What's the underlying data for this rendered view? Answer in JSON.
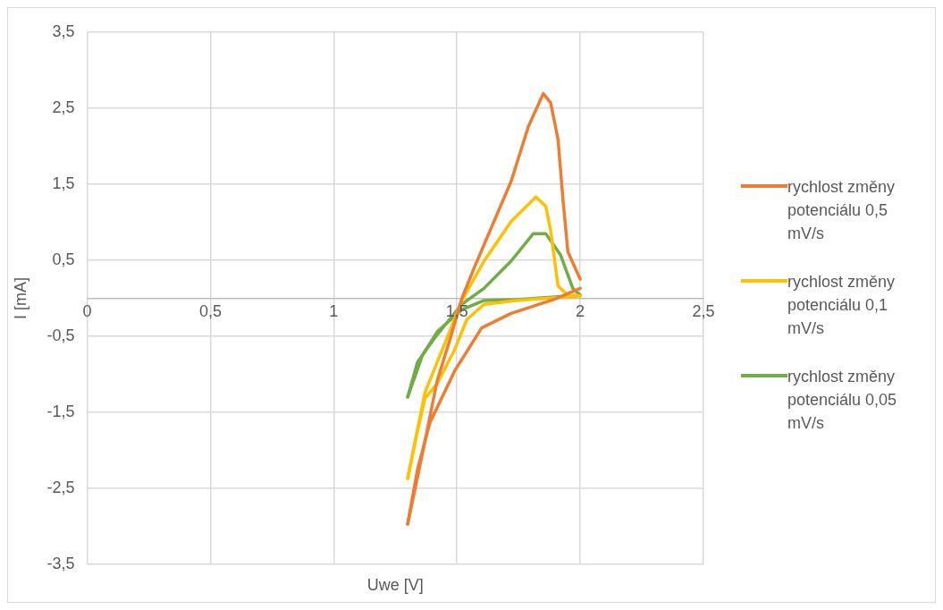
{
  "chart_data": {
    "type": "line",
    "xlabel": "Uwe [V]",
    "ylabel": "I [mA]",
    "xlim": [
      0,
      2.5
    ],
    "ylim": [
      -3.5,
      3.5
    ],
    "xticks": [
      0,
      {
        "value": 0.5,
        "label": "0,5"
      },
      1,
      {
        "value": 1.5,
        "label": "1,5"
      },
      2,
      {
        "value": 2.5,
        "label": "2,5"
      }
    ],
    "yticks": [
      {
        "value": -3.5,
        "label": "-3,5"
      },
      {
        "value": -2.5,
        "label": "-2,5"
      },
      {
        "value": -1.5,
        "label": "-1,5"
      },
      {
        "value": -0.5,
        "label": "-0,5"
      },
      {
        "value": 0.5,
        "label": "0,5"
      },
      {
        "value": 1.5,
        "label": "1,5"
      },
      {
        "value": 2.5,
        "label": "2,5"
      },
      {
        "value": 3.5,
        "label": "3,5"
      }
    ],
    "grid": true,
    "legend": "right",
    "marker": "none",
    "line_style": "solid",
    "series": [
      {
        "name": "rychlost změny potenciálu 0,5 mV/s",
        "color": "#ed7d31",
        "x": [
          1.3,
          1.36,
          1.42,
          1.47,
          1.52,
          1.57,
          1.72,
          1.79,
          1.85,
          1.88,
          1.91,
          1.93,
          1.95,
          2.0
        ],
        "values": [
          -2.97,
          -2.04,
          -1.08,
          -0.56,
          0,
          0.4,
          1.54,
          2.26,
          2.69,
          2.57,
          2.09,
          1.3,
          0.61,
          0.25
        ]
      },
      {
        "color": "#ed7d31",
        "x": [
          1.3,
          1.34,
          1.39,
          1.49,
          1.6,
          1.72,
          1.89,
          2.0
        ],
        "values": [
          -2.97,
          -2.25,
          -1.64,
          -0.96,
          -0.39,
          -0.2,
          -0.02,
          0.13
        ]
      },
      {
        "name": "rychlost změny potenciálu 0,1 mV/s",
        "color": "#ffc000",
        "x": [
          1.3,
          1.33,
          1.37,
          1.46,
          1.52,
          1.61,
          1.72,
          1.82,
          1.86,
          1.88,
          1.91,
          1.95,
          2.0
        ],
        "values": [
          -2.37,
          -1.89,
          -1.24,
          -0.52,
          -0.03,
          0.49,
          1.01,
          1.33,
          1.21,
          0.89,
          0.16,
          0.04,
          0.03
        ]
      },
      {
        "color": "#ffc000",
        "x": [
          1.3,
          1.33,
          1.37,
          1.42,
          1.49,
          1.54,
          1.61,
          1.74,
          2.0
        ],
        "values": [
          -2.37,
          -1.89,
          -1.32,
          -1.12,
          -0.68,
          -0.28,
          -0.08,
          -0.03,
          0.03
        ]
      },
      {
        "name": "rychlost změny potenciálu 0,05 mV/s",
        "color": "#70ad47",
        "x": [
          1.3,
          1.34,
          1.41,
          1.52,
          1.61,
          1.72,
          1.81,
          1.86,
          1.92,
          1.97,
          2.0
        ],
        "values": [
          -1.3,
          -0.84,
          -0.52,
          -0.08,
          0.13,
          0.49,
          0.85,
          0.85,
          0.57,
          0.13,
          0.04
        ]
      },
      {
        "color": "#70ad47",
        "x": [
          1.3,
          1.36,
          1.42,
          1.52,
          1.61,
          1.74,
          2.0
        ],
        "values": [
          -1.3,
          -0.75,
          -0.44,
          -0.15,
          -0.03,
          -0.02,
          0.04
        ]
      }
    ]
  }
}
